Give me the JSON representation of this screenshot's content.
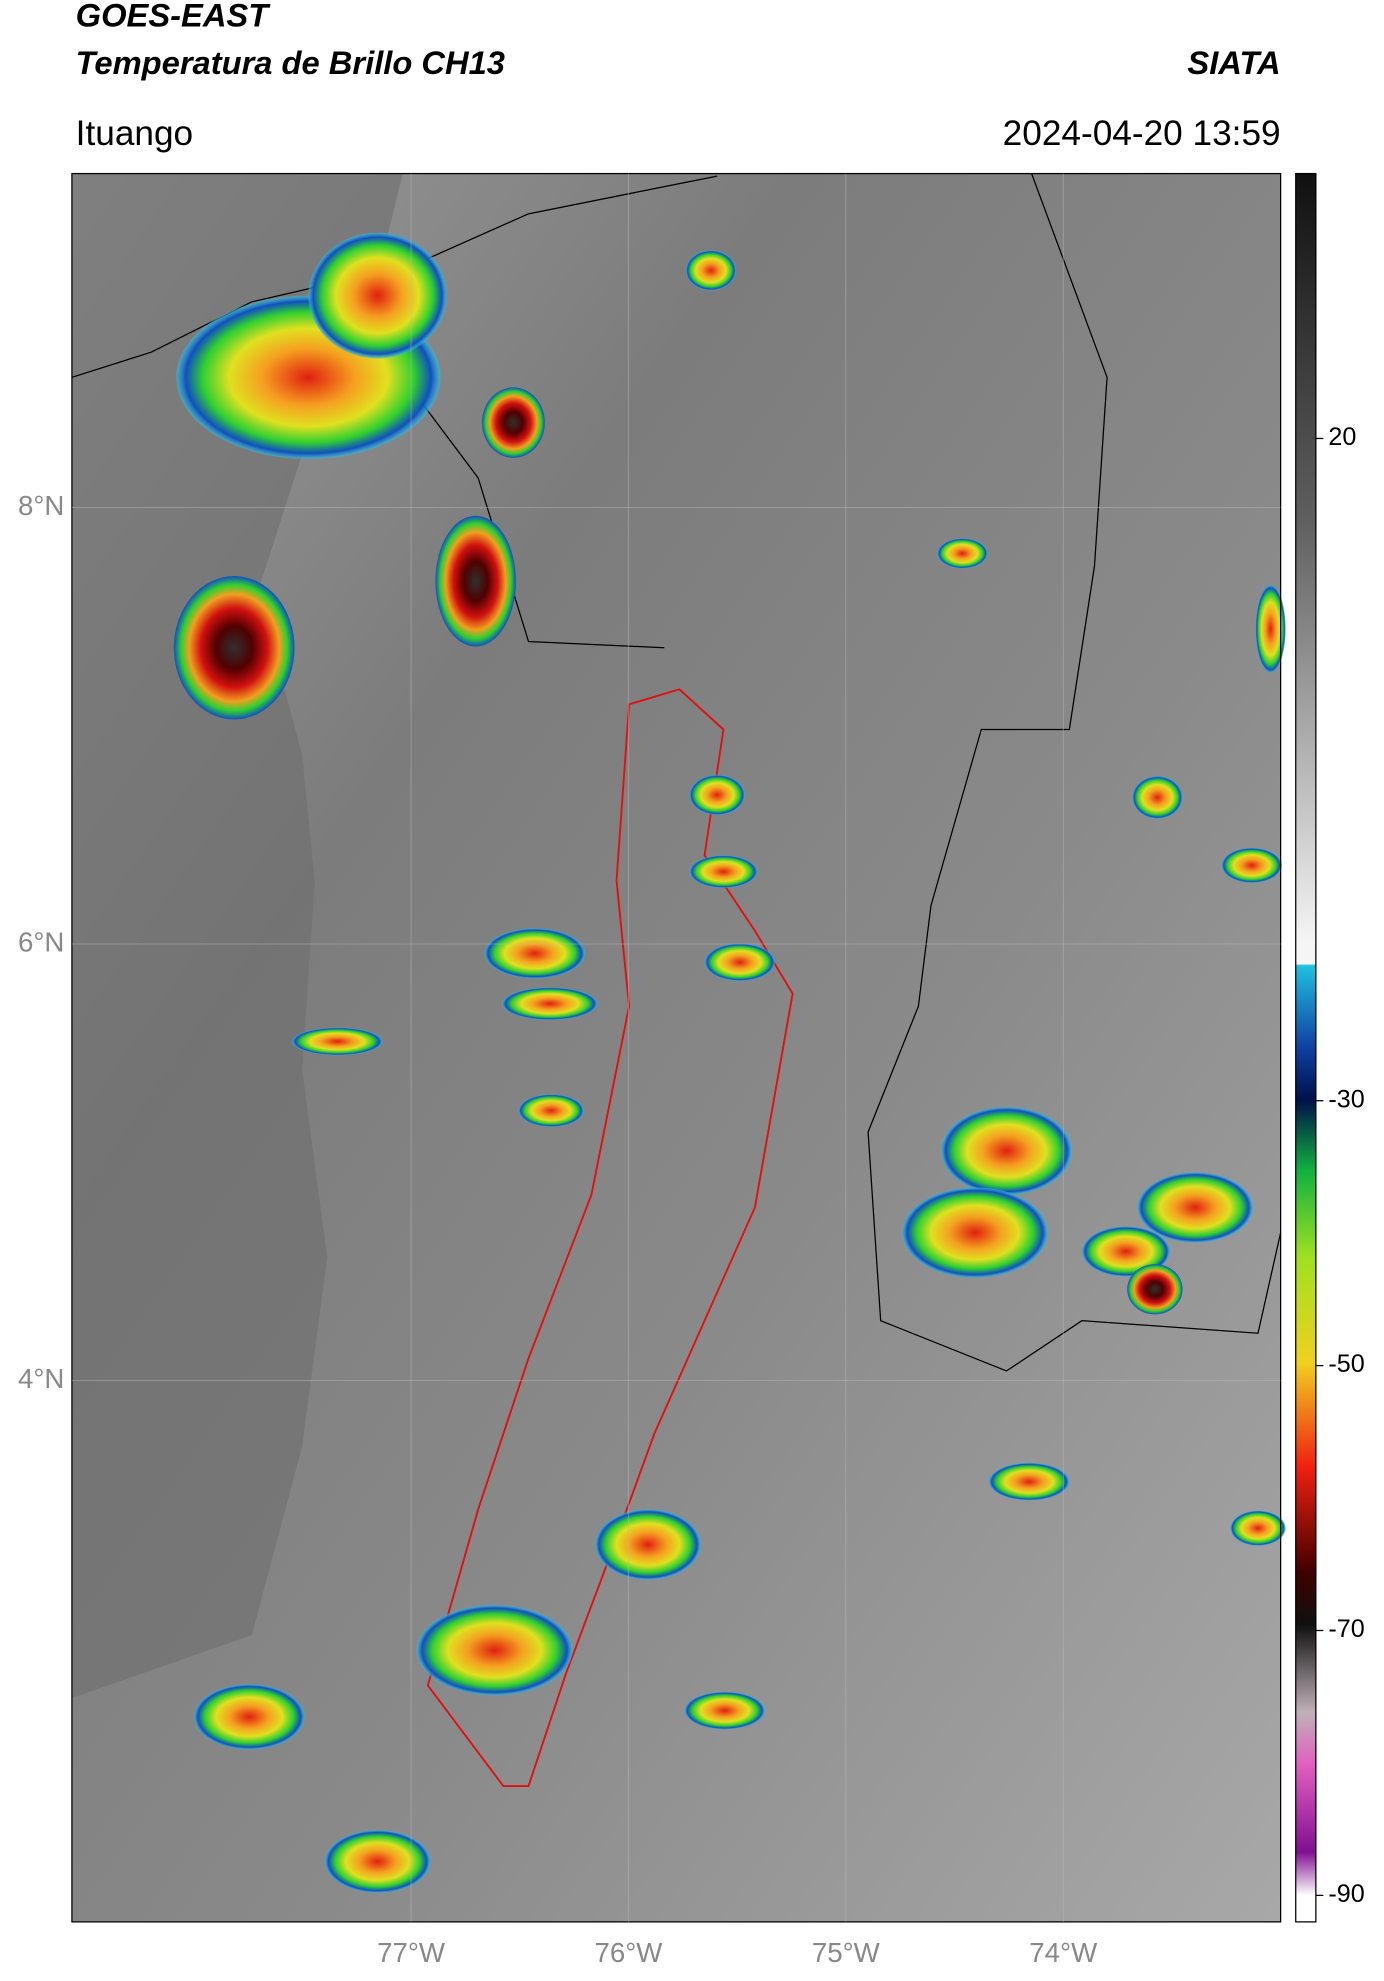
{
  "header": {
    "title": "GOES-EAST",
    "subtitle": "Temperatura de Brillo CH13",
    "organization": "SIATA",
    "location": "Ituango",
    "timestamp": "2024-04-20 13:59"
  },
  "map": {
    "lat_range": [
      1.52,
      9.53
    ],
    "lon_range": [
      -78.56,
      -73.0
    ],
    "lat_ticks": [
      {
        "value": 8,
        "label": "8°N"
      },
      {
        "value": 6,
        "label": "6°N"
      },
      {
        "value": 4,
        "label": "4°N"
      }
    ],
    "lon_ticks": [
      {
        "value": -77,
        "label": "77°W"
      },
      {
        "value": -76,
        "label": "76°W"
      },
      {
        "value": -75,
        "label": "75°W"
      },
      {
        "value": -74,
        "label": "74°W"
      }
    ]
  },
  "colorbar": {
    "lim": [
      -92,
      40
    ],
    "ticks": [
      20,
      -30,
      -50,
      -70,
      -90
    ]
  }
}
